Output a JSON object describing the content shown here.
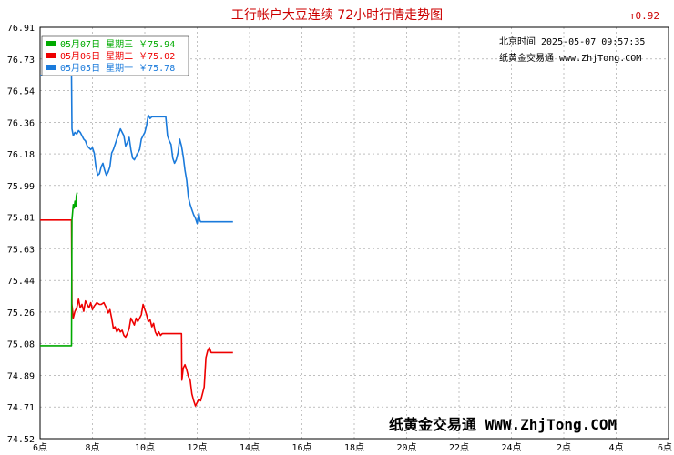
{
  "chart_data": {
    "type": "line",
    "title": "工行帐户大豆连续 72小时行情走势图",
    "change_label": "↑0.92",
    "info_time": "北京时间 2025-05-07 09:57:35",
    "info_site": "纸黄金交易通 www.ZhjTong.COM",
    "watermark": "纸黄金交易通 WWW.ZhjTong.COM",
    "y_ticks": [
      "76.91",
      "76.73",
      "76.54",
      "76.36",
      "76.18",
      "75.99",
      "75.81",
      "75.63",
      "75.44",
      "75.26",
      "75.08",
      "74.89",
      "74.71",
      "74.52"
    ],
    "ylim": [
      74.52,
      76.91
    ],
    "x_ticks": [
      "6点",
      "8点",
      "10点",
      "12点",
      "14点",
      "16点",
      "18点",
      "20点",
      "22点",
      "24点",
      "2点",
      "4点",
      "6点"
    ],
    "series": [
      {
        "name": "05月07日 星期三 ￥75.94",
        "color": "#00aa00",
        "points": [
          [
            0,
            75.06
          ],
          [
            3.6,
            75.06
          ],
          [
            3.65,
            75.79
          ],
          [
            3.8,
            75.88
          ],
          [
            3.9,
            75.86
          ],
          [
            4.0,
            75.9
          ],
          [
            4.1,
            75.87
          ],
          [
            4.15,
            75.93
          ],
          [
            4.25,
            75.95
          ]
        ]
      },
      {
        "name": "05月06日 星期二 ￥75.02",
        "color": "#ee0000",
        "points": [
          [
            0,
            75.79
          ],
          [
            3.6,
            75.79
          ],
          [
            3.65,
            75.3
          ],
          [
            3.8,
            75.22
          ],
          [
            4.0,
            75.26
          ],
          [
            4.2,
            75.28
          ],
          [
            4.4,
            75.33
          ],
          [
            4.6,
            75.28
          ],
          [
            4.8,
            75.3
          ],
          [
            5.0,
            75.26
          ],
          [
            5.2,
            75.32
          ],
          [
            5.4,
            75.3
          ],
          [
            5.6,
            75.28
          ],
          [
            5.8,
            75.31
          ],
          [
            6.0,
            75.27
          ],
          [
            6.2,
            75.29
          ],
          [
            6.5,
            75.31
          ],
          [
            6.8,
            75.3
          ],
          [
            7.0,
            75.3
          ],
          [
            7.3,
            75.31
          ],
          [
            7.6,
            75.28
          ],
          [
            7.8,
            75.25
          ],
          [
            8.0,
            75.27
          ],
          [
            8.2,
            75.22
          ],
          [
            8.4,
            75.16
          ],
          [
            8.6,
            75.17
          ],
          [
            8.8,
            75.14
          ],
          [
            9.0,
            75.16
          ],
          [
            9.2,
            75.14
          ],
          [
            9.4,
            75.15
          ],
          [
            9.6,
            75.12
          ],
          [
            9.8,
            75.11
          ],
          [
            10.0,
            75.13
          ],
          [
            10.2,
            75.16
          ],
          [
            10.4,
            75.22
          ],
          [
            10.6,
            75.2
          ],
          [
            10.8,
            75.18
          ],
          [
            11.0,
            75.22
          ],
          [
            11.2,
            75.2
          ],
          [
            11.4,
            75.22
          ],
          [
            11.6,
            75.24
          ],
          [
            11.8,
            75.3
          ],
          [
            12.0,
            75.27
          ],
          [
            12.2,
            75.24
          ],
          [
            12.4,
            75.2
          ],
          [
            12.6,
            75.21
          ],
          [
            12.8,
            75.17
          ],
          [
            13.0,
            75.19
          ],
          [
            13.2,
            75.14
          ],
          [
            13.4,
            75.12
          ],
          [
            13.6,
            75.14
          ],
          [
            13.8,
            75.12
          ],
          [
            14.0,
            75.13
          ],
          [
            14.8,
            75.13
          ],
          [
            16.2,
            75.13
          ],
          [
            16.25,
            74.86
          ],
          [
            16.4,
            74.93
          ],
          [
            16.6,
            74.95
          ],
          [
            16.8,
            74.92
          ],
          [
            17.0,
            74.88
          ],
          [
            17.2,
            74.86
          ],
          [
            17.4,
            74.78
          ],
          [
            17.6,
            74.74
          ],
          [
            17.8,
            74.71
          ],
          [
            18.0,
            74.73
          ],
          [
            18.2,
            74.75
          ],
          [
            18.4,
            74.74
          ],
          [
            18.6,
            74.78
          ],
          [
            18.8,
            74.82
          ],
          [
            18.9,
            74.9
          ],
          [
            19.0,
            74.99
          ],
          [
            19.2,
            75.03
          ],
          [
            19.4,
            75.05
          ],
          [
            19.6,
            75.02
          ],
          [
            19.7,
            75.02
          ],
          [
            22.1,
            75.02
          ]
        ]
      },
      {
        "name": "05月05日 星期一 ￥75.78",
        "color": "#1a7adb",
        "points": [
          [
            0,
            76.63
          ],
          [
            3.6,
            76.63
          ],
          [
            3.65,
            76.32
          ],
          [
            3.8,
            76.28
          ],
          [
            4.0,
            76.3
          ],
          [
            4.2,
            76.29
          ],
          [
            4.4,
            76.31
          ],
          [
            4.6,
            76.3
          ],
          [
            4.8,
            76.28
          ],
          [
            5.0,
            76.26
          ],
          [
            5.2,
            76.25
          ],
          [
            5.4,
            76.22
          ],
          [
            5.6,
            76.21
          ],
          [
            5.8,
            76.2
          ],
          [
            6.0,
            76.21
          ],
          [
            6.2,
            76.18
          ],
          [
            6.4,
            76.1
          ],
          [
            6.6,
            76.05
          ],
          [
            6.8,
            76.06
          ],
          [
            7.0,
            76.1
          ],
          [
            7.2,
            76.12
          ],
          [
            7.4,
            76.08
          ],
          [
            7.6,
            76.05
          ],
          [
            7.8,
            76.07
          ],
          [
            8.0,
            76.1
          ],
          [
            8.2,
            76.18
          ],
          [
            8.4,
            76.2
          ],
          [
            8.6,
            76.23
          ],
          [
            8.8,
            76.26
          ],
          [
            9.0,
            76.29
          ],
          [
            9.2,
            76.32
          ],
          [
            9.4,
            76.3
          ],
          [
            9.6,
            76.28
          ],
          [
            9.8,
            76.22
          ],
          [
            10.0,
            76.24
          ],
          [
            10.2,
            76.27
          ],
          [
            10.4,
            76.2
          ],
          [
            10.6,
            76.15
          ],
          [
            10.8,
            76.14
          ],
          [
            11.0,
            76.16
          ],
          [
            11.2,
            76.18
          ],
          [
            11.4,
            76.2
          ],
          [
            11.6,
            76.26
          ],
          [
            11.8,
            76.28
          ],
          [
            12.0,
            76.3
          ],
          [
            12.2,
            76.34
          ],
          [
            12.4,
            76.4
          ],
          [
            12.6,
            76.38
          ],
          [
            12.8,
            76.39
          ],
          [
            13.0,
            76.39
          ],
          [
            13.2,
            76.39
          ],
          [
            14.0,
            76.39
          ],
          [
            14.4,
            76.39
          ],
          [
            14.6,
            76.28
          ],
          [
            14.8,
            76.25
          ],
          [
            15.0,
            76.23
          ],
          [
            15.2,
            76.15
          ],
          [
            15.4,
            76.12
          ],
          [
            15.6,
            76.14
          ],
          [
            15.8,
            76.18
          ],
          [
            16.0,
            76.26
          ],
          [
            16.2,
            76.22
          ],
          [
            16.4,
            76.16
          ],
          [
            16.6,
            76.08
          ],
          [
            16.8,
            76.02
          ],
          [
            17.0,
            75.92
          ],
          [
            17.2,
            75.88
          ],
          [
            17.4,
            75.85
          ],
          [
            17.6,
            75.82
          ],
          [
            17.8,
            75.8
          ],
          [
            18.0,
            75.77
          ],
          [
            18.2,
            75.83
          ],
          [
            18.3,
            75.79
          ],
          [
            18.4,
            75.78
          ],
          [
            20.0,
            75.78
          ],
          [
            22.1,
            75.78
          ]
        ]
      }
    ]
  }
}
